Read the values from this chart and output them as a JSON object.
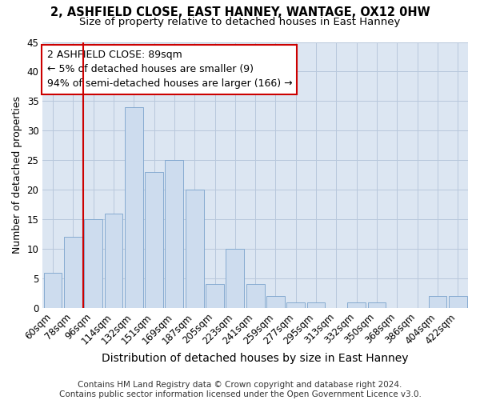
{
  "title1": "2, ASHFIELD CLOSE, EAST HANNEY, WANTAGE, OX12 0HW",
  "title2": "Size of property relative to detached houses in East Hanney",
  "xlabel": "Distribution of detached houses by size in East Hanney",
  "ylabel": "Number of detached properties",
  "categories": [
    "60sqm",
    "78sqm",
    "96sqm",
    "114sqm",
    "132sqm",
    "151sqm",
    "169sqm",
    "187sqm",
    "205sqm",
    "223sqm",
    "241sqm",
    "259sqm",
    "277sqm",
    "295sqm",
    "313sqm",
    "332sqm",
    "350sqm",
    "368sqm",
    "386sqm",
    "404sqm",
    "422sqm"
  ],
  "values": [
    6,
    12,
    15,
    16,
    34,
    23,
    25,
    20,
    4,
    10,
    4,
    2,
    1,
    1,
    0,
    1,
    1,
    0,
    0,
    2,
    2
  ],
  "bar_color": "#cddcee",
  "bar_edge_color": "#7aa3cc",
  "vline_x": 1.5,
  "vline_color": "#cc0000",
  "annotation_text": "2 ASHFIELD CLOSE: 89sqm\n← 5% of detached houses are smaller (9)\n94% of semi-detached houses are larger (166) →",
  "annotation_box_color": "#ffffff",
  "annotation_box_edge": "#cc0000",
  "ylim": [
    0,
    45
  ],
  "yticks": [
    0,
    5,
    10,
    15,
    20,
    25,
    30,
    35,
    40,
    45
  ],
  "grid_color": "#b8c8dc",
  "bg_color": "#dce6f2",
  "footnote": "Contains HM Land Registry data © Crown copyright and database right 2024.\nContains public sector information licensed under the Open Government Licence v3.0.",
  "title_fontsize": 10.5,
  "subtitle_fontsize": 9.5,
  "xlabel_fontsize": 10,
  "ylabel_fontsize": 9,
  "tick_fontsize": 8.5,
  "annot_fontsize": 9,
  "footnote_fontsize": 7.5
}
